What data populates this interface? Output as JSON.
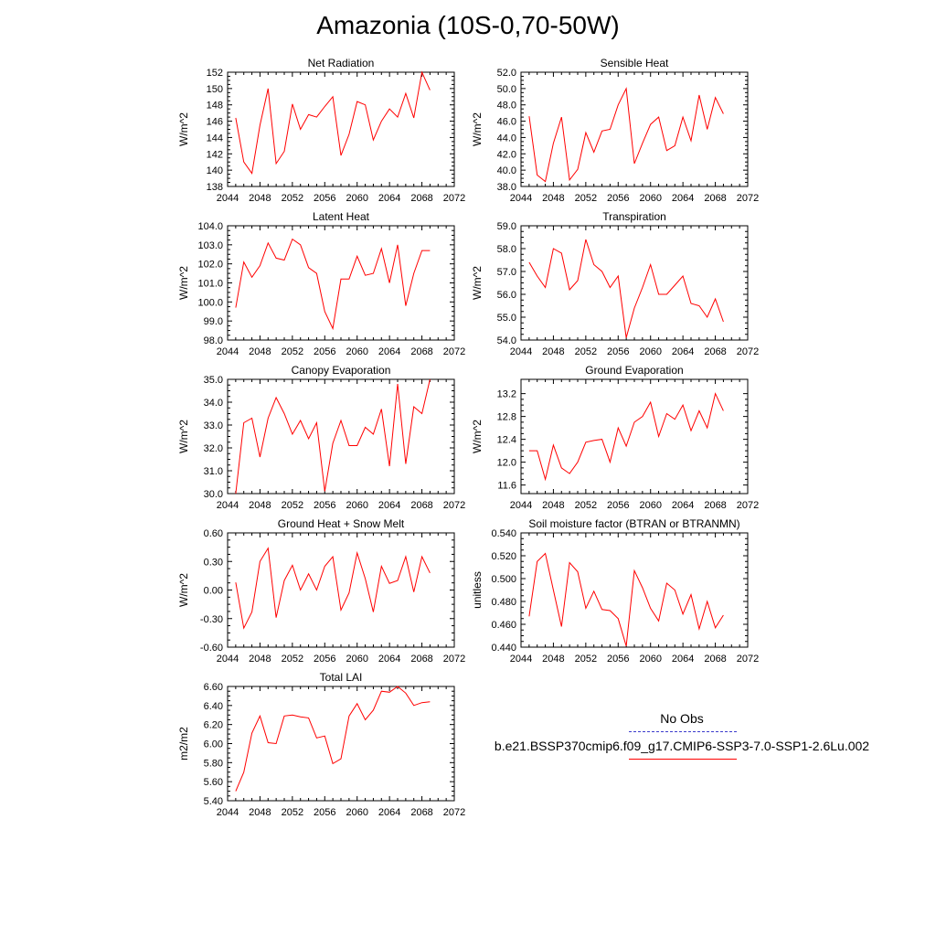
{
  "title": "Amazonia (10S-0,70-50W)",
  "legend": {
    "obs_label": "No Obs",
    "obs_color": "#3b3bcc",
    "case_label": "b.e21.BSSP370cmip6.f09_g17.CMIP6-SSP3-7.0-SSP1-2.6Lu.002",
    "case_color": "#ff0000"
  },
  "chart_data": [
    {
      "type": "line",
      "title": "Net Radiation",
      "ylabel": "W/m^2",
      "xlim": [
        2044,
        2072
      ],
      "xticks": [
        "2044",
        "2048",
        "2052",
        "2056",
        "2060",
        "2064",
        "2068",
        "2072"
      ],
      "ylim": [
        138,
        152
      ],
      "yticks": [
        "138",
        "140",
        "142",
        "144",
        "146",
        "148",
        "150",
        "152"
      ],
      "x": [
        2045,
        2046,
        2047,
        2048,
        2049,
        2050,
        2051,
        2052,
        2053,
        2054,
        2055,
        2056,
        2057,
        2058,
        2059,
        2060,
        2061,
        2062,
        2063,
        2064,
        2065,
        2066,
        2067,
        2068,
        2069
      ],
      "series": [
        {
          "values": [
            146.4,
            141.0,
            139.6,
            145.5,
            150.0,
            140.8,
            142.3,
            148.1,
            145.0,
            146.8,
            146.5,
            147.8,
            149.0,
            141.8,
            144.4,
            148.4,
            148.0,
            143.7,
            146.0,
            147.5,
            146.5,
            149.4,
            146.4,
            152.0,
            149.8
          ]
        }
      ]
    },
    {
      "type": "line",
      "title": "Sensible Heat",
      "ylabel": "W/m^2",
      "xlim": [
        2044,
        2072
      ],
      "xticks": [
        "2044",
        "2048",
        "2052",
        "2056",
        "2060",
        "2064",
        "2068",
        "2072"
      ],
      "ylim": [
        38,
        52
      ],
      "yticks": [
        "38.0",
        "40.0",
        "42.0",
        "44.0",
        "46.0",
        "48.0",
        "50.0",
        "52.0"
      ],
      "x": [
        2045,
        2046,
        2047,
        2048,
        2049,
        2050,
        2051,
        2052,
        2053,
        2054,
        2055,
        2056,
        2057,
        2058,
        2059,
        2060,
        2061,
        2062,
        2063,
        2064,
        2065,
        2066,
        2067,
        2068,
        2069
      ],
      "series": [
        {
          "values": [
            46.6,
            39.4,
            38.6,
            43.3,
            46.5,
            38.8,
            40.1,
            44.6,
            42.2,
            44.8,
            45.0,
            48.0,
            50.0,
            40.8,
            43.3,
            45.6,
            46.5,
            42.4,
            43.0,
            46.5,
            43.6,
            49.2,
            45.0,
            48.9,
            46.9
          ]
        }
      ]
    },
    {
      "type": "line",
      "title": "Latent Heat",
      "ylabel": "W/m^2",
      "xlim": [
        2044,
        2072
      ],
      "xticks": [
        "2044",
        "2048",
        "2052",
        "2056",
        "2060",
        "2064",
        "2068",
        "2072"
      ],
      "ylim": [
        98,
        104
      ],
      "yticks": [
        "98.0",
        "99.0",
        "100.0",
        "101.0",
        "102.0",
        "103.0",
        "104.0"
      ],
      "x": [
        2045,
        2046,
        2047,
        2048,
        2049,
        2050,
        2051,
        2052,
        2053,
        2054,
        2055,
        2056,
        2057,
        2058,
        2059,
        2060,
        2061,
        2062,
        2063,
        2064,
        2065,
        2066,
        2067,
        2068,
        2069
      ],
      "series": [
        {
          "values": [
            99.7,
            102.1,
            101.3,
            101.9,
            103.1,
            102.3,
            102.2,
            103.3,
            103.0,
            101.8,
            101.5,
            99.5,
            98.6,
            101.2,
            101.2,
            102.4,
            101.4,
            101.5,
            102.8,
            101.0,
            103.0,
            99.8,
            101.5,
            102.7,
            102.7
          ]
        }
      ]
    },
    {
      "type": "line",
      "title": "Transpiration",
      "ylabel": "W/m^2",
      "xlim": [
        2044,
        2072
      ],
      "xticks": [
        "2044",
        "2048",
        "2052",
        "2056",
        "2060",
        "2064",
        "2068",
        "2072"
      ],
      "ylim": [
        54,
        59
      ],
      "yticks": [
        "54.0",
        "55.0",
        "56.0",
        "57.0",
        "58.0",
        "59.0"
      ],
      "x": [
        2045,
        2046,
        2047,
        2048,
        2049,
        2050,
        2051,
        2052,
        2053,
        2054,
        2055,
        2056,
        2057,
        2058,
        2059,
        2060,
        2061,
        2062,
        2063,
        2064,
        2065,
        2066,
        2067,
        2068,
        2069
      ],
      "series": [
        {
          "values": [
            57.4,
            56.8,
            56.3,
            58.0,
            57.8,
            56.2,
            56.6,
            58.4,
            57.3,
            57.0,
            56.3,
            56.8,
            54.1,
            55.4,
            56.3,
            57.3,
            56.0,
            56.0,
            56.4,
            56.8,
            55.6,
            55.5,
            55.0,
            55.8,
            54.8
          ]
        }
      ]
    },
    {
      "type": "line",
      "title": "Canopy Evaporation",
      "ylabel": "W/m^2",
      "xlim": [
        2044,
        2072
      ],
      "xticks": [
        "2044",
        "2048",
        "2052",
        "2056",
        "2060",
        "2064",
        "2068",
        "2072"
      ],
      "ylim": [
        30,
        35
      ],
      "yticks": [
        "30.0",
        "31.0",
        "32.0",
        "33.0",
        "34.0",
        "35.0"
      ],
      "x": [
        2045,
        2046,
        2047,
        2048,
        2049,
        2050,
        2051,
        2052,
        2053,
        2054,
        2055,
        2056,
        2057,
        2058,
        2059,
        2060,
        2061,
        2062,
        2063,
        2064,
        2065,
        2066,
        2067,
        2068,
        2069
      ],
      "series": [
        {
          "values": [
            30.0,
            33.1,
            33.3,
            31.6,
            33.3,
            34.2,
            33.5,
            32.6,
            33.2,
            32.4,
            33.1,
            30.1,
            32.2,
            33.2,
            32.1,
            32.1,
            32.9,
            32.6,
            33.7,
            31.2,
            34.8,
            31.3,
            33.8,
            33.5,
            35.0
          ]
        }
      ]
    },
    {
      "type": "line",
      "title": "Ground Evaporation",
      "ylabel": "W/m^2",
      "xlim": [
        2044,
        2072
      ],
      "xticks": [
        "2044",
        "2048",
        "2052",
        "2056",
        "2060",
        "2064",
        "2068",
        "2072"
      ],
      "ylim": [
        11.45,
        13.45
      ],
      "yticks": [
        "11.6",
        "12.0",
        "12.4",
        "12.8",
        "13.2"
      ],
      "x": [
        2045,
        2046,
        2047,
        2048,
        2049,
        2050,
        2051,
        2052,
        2053,
        2054,
        2055,
        2056,
        2057,
        2058,
        2059,
        2060,
        2061,
        2062,
        2063,
        2064,
        2065,
        2066,
        2067,
        2068,
        2069
      ],
      "series": [
        {
          "values": [
            12.2,
            12.2,
            11.7,
            12.3,
            11.9,
            11.8,
            12.0,
            12.35,
            12.38,
            12.4,
            12.0,
            12.6,
            12.28,
            12.7,
            12.8,
            13.05,
            12.45,
            12.85,
            12.75,
            13.0,
            12.55,
            12.9,
            12.6,
            13.2,
            12.9
          ]
        }
      ]
    },
    {
      "type": "line",
      "title": "Ground Heat + Snow Melt",
      "ylabel": "W/m^2",
      "xlim": [
        2044,
        2072
      ],
      "xticks": [
        "2044",
        "2048",
        "2052",
        "2056",
        "2060",
        "2064",
        "2068",
        "2072"
      ],
      "ylim": [
        -0.6,
        0.6
      ],
      "yticks": [
        "-0.60",
        "-0.30",
        "0.00",
        "0.30",
        "0.60"
      ],
      "x": [
        2045,
        2046,
        2047,
        2048,
        2049,
        2050,
        2051,
        2052,
        2053,
        2054,
        2055,
        2056,
        2057,
        2058,
        2059,
        2060,
        2061,
        2062,
        2063,
        2064,
        2065,
        2066,
        2067,
        2068,
        2069
      ],
      "series": [
        {
          "values": [
            0.08,
            -0.4,
            -0.23,
            0.3,
            0.44,
            -0.29,
            0.1,
            0.26,
            0.0,
            0.17,
            0.0,
            0.25,
            0.35,
            -0.21,
            -0.03,
            0.39,
            0.12,
            -0.23,
            0.25,
            0.07,
            0.1,
            0.35,
            -0.02,
            0.35,
            0.18
          ]
        }
      ]
    },
    {
      "type": "line",
      "title": "Soil moisture factor (BTRAN or BTRANMN)",
      "ylabel": "unitless",
      "xlim": [
        2044,
        2072
      ],
      "xticks": [
        "2044",
        "2048",
        "2052",
        "2056",
        "2060",
        "2064",
        "2068",
        "2072"
      ],
      "ylim": [
        0.44,
        0.54
      ],
      "yticks": [
        "0.440",
        "0.460",
        "0.480",
        "0.500",
        "0.520",
        "0.540"
      ],
      "x": [
        2045,
        2046,
        2047,
        2048,
        2049,
        2050,
        2051,
        2052,
        2053,
        2054,
        2055,
        2056,
        2057,
        2058,
        2059,
        2060,
        2061,
        2062,
        2063,
        2064,
        2065,
        2066,
        2067,
        2068,
        2069
      ],
      "series": [
        {
          "values": [
            0.467,
            0.515,
            0.522,
            0.49,
            0.458,
            0.514,
            0.506,
            0.474,
            0.489,
            0.473,
            0.472,
            0.465,
            0.441,
            0.507,
            0.492,
            0.474,
            0.463,
            0.496,
            0.49,
            0.469,
            0.486,
            0.456,
            0.48,
            0.457,
            0.468
          ]
        }
      ]
    },
    {
      "type": "line",
      "title": "Total LAI",
      "ylabel": "m2/m2",
      "xlim": [
        2044,
        2072
      ],
      "xticks": [
        "2044",
        "2048",
        "2052",
        "2056",
        "2060",
        "2064",
        "2068",
        "2072"
      ],
      "ylim": [
        5.4,
        6.6
      ],
      "yticks": [
        "5.40",
        "5.60",
        "5.80",
        "6.00",
        "6.20",
        "6.40",
        "6.60"
      ],
      "x": [
        2045,
        2046,
        2047,
        2048,
        2049,
        2050,
        2051,
        2052,
        2053,
        2054,
        2055,
        2056,
        2057,
        2058,
        2059,
        2060,
        2061,
        2062,
        2063,
        2064,
        2065,
        2066,
        2067,
        2068,
        2069
      ],
      "series": [
        {
          "values": [
            5.5,
            5.7,
            6.11,
            6.29,
            6.01,
            6.0,
            6.29,
            6.3,
            6.28,
            6.27,
            6.06,
            6.08,
            5.79,
            5.84,
            6.29,
            6.42,
            6.25,
            6.35,
            6.55,
            6.54,
            6.6,
            6.53,
            6.4,
            6.43,
            6.44
          ]
        }
      ]
    }
  ]
}
